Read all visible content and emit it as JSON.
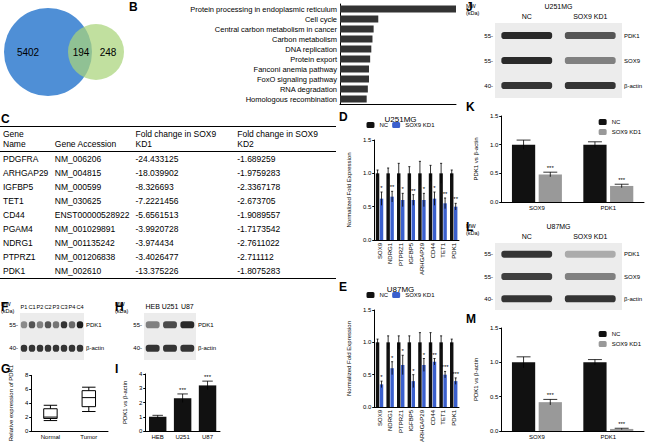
{
  "chart_data": [
    {
      "type": "venn",
      "sets": [
        {
          "value": 5402,
          "color": "#4f8fd6"
        },
        {
          "value": 248,
          "color": "#a9d47a"
        }
      ],
      "overlap": 194
    },
    {
      "type": "bar",
      "panel": "B",
      "orientation": "horizontal",
      "tick_labels": "y",
      "categories": [
        "Protein processing in endoplasmic reticulum",
        "Cell cycle",
        "Central carbon metabolism in cancer",
        "Carbon metabolism",
        "DNA replication",
        "Protein export",
        "Fanconi anemia pathway",
        "FoxO signaling pathway",
        "RNA degradation",
        "Homologous recombination"
      ],
      "values": [
        10,
        3.3,
        2.9,
        2.8,
        2.7,
        2.6,
        2.5,
        2.5,
        2.4,
        2.3
      ],
      "color": "#333333",
      "xlim": [
        0,
        10
      ],
      "xticks": []
    },
    {
      "type": "table",
      "panel": "C",
      "header": [
        "Gene Name",
        "Gene Accession",
        "Fold change in SOX9 KD1",
        "Fold change in SOX9 KD2"
      ],
      "rows": [
        [
          "PDGFRA",
          "NM_006206",
          "-24.433125",
          "-1.689259"
        ],
        [
          "ARHGAP29",
          "NM_004815",
          "-18.039902",
          "-1.9759283"
        ],
        [
          "IGFBP5",
          "NM_000599",
          "-8.326693",
          "-2.3367178"
        ],
        [
          "TET1",
          "NM_030625",
          "-7.2221456",
          "-2.673705"
        ],
        [
          "CD44",
          "ENST00000528922",
          "-5.6561513",
          "-1.9089557"
        ],
        [
          "PGAM4",
          "NM_001029891",
          "-3.9920728",
          "-1.7173542"
        ],
        [
          "NDRG1",
          "NM_001135242",
          "-3.974434",
          "-2.7611022"
        ],
        [
          "PTPRZ1",
          "NM_001206838",
          "-3.4026477",
          "-2.711112"
        ],
        [
          "PDK1",
          "NM_002610",
          "-13.375226",
          "-1.8075283"
        ]
      ]
    },
    {
      "type": "bar",
      "panel": "D",
      "title": "U251MG",
      "legend": "top",
      "categories": [
        "SOX9",
        "NDRG1",
        "PTPRZ1",
        "IGFBP5",
        "ARHGAP29",
        "CD44",
        "TET1",
        "PDK1"
      ],
      "series": [
        {
          "name": "NC",
          "color": "#111111",
          "values": [
            1,
            1,
            1,
            1,
            1,
            1,
            1,
            1
          ],
          "errors": [
            0.05,
            0.08,
            0.15,
            0.1,
            0.18,
            0.12,
            0.15,
            0.05
          ]
        },
        {
          "name": "SOX9 KD1",
          "color": "#3a5fcd",
          "values": [
            0.62,
            0.65,
            0.6,
            0.6,
            0.6,
            0.62,
            0.55,
            0.5
          ],
          "errors": [
            0.1,
            0.08,
            0.1,
            0.08,
            0.1,
            0.1,
            0.08,
            0.05
          ],
          "annotations": [
            "*",
            "**",
            "*",
            "**",
            "*",
            "*",
            "**",
            "**"
          ]
        }
      ],
      "ylabel": "Normalized Fold Expression",
      "ylim": [
        0,
        1.5
      ],
      "yticks": [
        {
          "value": 0,
          "label": "0.0"
        },
        {
          "value": 0.5,
          "label": "0.5"
        },
        {
          "value": 1,
          "label": "1.0"
        },
        {
          "value": 1.5,
          "label": "1.5"
        }
      ]
    },
    {
      "type": "bar",
      "panel": "E",
      "title": "U87MG",
      "legend": "top",
      "categories": [
        "SOX9",
        "NDRG1",
        "PTPRZ1",
        "IGFBP5",
        "ARHGAP29",
        "CD44",
        "TET1",
        "PDK1"
      ],
      "series": [
        {
          "name": "NC",
          "color": "#111111",
          "values": [
            1,
            1,
            1,
            1,
            1,
            1,
            1,
            1
          ],
          "errors": [
            0.05,
            0.1,
            0.1,
            0.1,
            0.15,
            0.15,
            0.1,
            0.05
          ]
        },
        {
          "name": "SOX9 KD1",
          "color": "#3a5fcd",
          "values": [
            0.35,
            0.6,
            0.65,
            0.4,
            0.65,
            0.7,
            0.5,
            0.4
          ],
          "errors": [
            0.05,
            0.1,
            0.15,
            0.1,
            0.1,
            0.05,
            0.05,
            0.05
          ],
          "annotations": [
            "*",
            "*",
            "*",
            "*",
            "*",
            "**",
            "***",
            "***"
          ]
        }
      ],
      "ylabel": "Normalized Fold Expression",
      "ylim": [
        0,
        1.5
      ],
      "yticks": [
        {
          "value": 0,
          "label": "0.0"
        },
        {
          "value": 0.5,
          "label": "0.5"
        },
        {
          "value": 1,
          "label": "1.0"
        },
        {
          "value": 1.5,
          "label": "1.5"
        }
      ]
    },
    {
      "type": "blot",
      "panel": "F",
      "mw_title": [
        "MW",
        "(kDa)"
      ],
      "lanes": [
        "P1",
        "C1",
        "P2",
        "C2",
        "P3",
        "C3",
        "P4",
        "C4"
      ],
      "rows": [
        {
          "label": "PDK1",
          "mw": "55-",
          "intensity": [
            0.45,
            0.7,
            0.5,
            0.7,
            0.55,
            0.85,
            0.6,
            0.95
          ]
        },
        {
          "label": "β-actin",
          "mw": "40-",
          "intensity": [
            0.85,
            0.85,
            0.85,
            0.85,
            0.85,
            0.85,
            0.85,
            0.85
          ]
        }
      ]
    },
    {
      "type": "boxplot",
      "panel": "G",
      "categories": [
        "Normal",
        "Tumor"
      ],
      "boxes": [
        [
          1.5,
          1.8,
          2.0,
          3.2,
          3.7
        ],
        [
          2.8,
          3.5,
          4.8,
          5.8,
          6.3
        ]
      ],
      "ylabel": "Relative expression of PDK1",
      "ylim": [
        0,
        8
      ],
      "yticks": [
        0,
        2,
        4,
        6,
        8
      ]
    },
    {
      "type": "blot",
      "panel": "H",
      "mw_title": [
        "MW",
        "(kDa)"
      ],
      "lanes": [
        "HEB",
        "U251",
        "U87"
      ],
      "rows": [
        {
          "label": "PDK1",
          "mw": "55-",
          "intensity": [
            0.5,
            0.75,
            0.9
          ]
        },
        {
          "label": "β-actin",
          "mw": "40-",
          "intensity": [
            0.85,
            0.85,
            0.85
          ]
        }
      ]
    },
    {
      "type": "bar",
      "panel": "I",
      "categories": [
        "HEB",
        "U251",
        "U87"
      ],
      "values": [
        1,
        2.3,
        3.2
      ],
      "errors": [
        0.1,
        0.3,
        0.3
      ],
      "annotations": [
        null,
        "***",
        "***"
      ],
      "color": "#111111",
      "ylabel": "PDK1 vs β-actin",
      "ylim": [
        0,
        4
      ],
      "yticks": [
        0,
        1,
        2,
        3,
        4
      ]
    },
    {
      "type": "blot",
      "panel": "J",
      "title": "U251MG",
      "mw_title": [
        "MW",
        "(kDa)"
      ],
      "lanes": [
        "NC",
        "SOX9 KD1"
      ],
      "rows": [
        {
          "label": "PDK1",
          "mw": "55-",
          "intensity": [
            0.9,
            0.7
          ]
        },
        {
          "label": "SOX9",
          "mw": "55-",
          "intensity": [
            0.9,
            0.5
          ]
        },
        {
          "label": "β-actin",
          "mw": "40-",
          "intensity": [
            0.85,
            0.85
          ]
        }
      ]
    },
    {
      "type": "bar",
      "panel": "K",
      "legend": "upper right",
      "categories": [
        "SOX9",
        "PDK1"
      ],
      "series": [
        {
          "name": "NC",
          "color": "#111111",
          "values": [
            1,
            1
          ],
          "errors": [
            0.08,
            0.05
          ]
        },
        {
          "name": "SOX9 KD1",
          "color": "#999999",
          "values": [
            0.48,
            0.28
          ],
          "errors": [
            0.04,
            0.03
          ],
          "annotations": [
            "***",
            "***"
          ]
        }
      ],
      "ylabel": "PDK1 vs β-actin",
      "ylim": [
        0,
        1.5
      ],
      "yticks": [
        {
          "value": 0,
          "label": "0.0"
        },
        {
          "value": 0.5,
          "label": "0.5"
        },
        {
          "value": 1,
          "label": "1.0"
        },
        {
          "value": 1.5,
          "label": "1.5"
        }
      ]
    },
    {
      "type": "blot",
      "panel": "L",
      "title": "U87MG",
      "mw_title": [
        "MW",
        "(kDa)"
      ],
      "lanes": [
        "NC",
        "SOX9 KD1"
      ],
      "rows": [
        {
          "label": "PDK1",
          "mw": "55-",
          "intensity": [
            0.85,
            0.3
          ]
        },
        {
          "label": "SOX9",
          "mw": "55-",
          "intensity": [
            0.8,
            0.5
          ]
        },
        {
          "label": "β-actin",
          "mw": "40-",
          "intensity": [
            0.85,
            0.85
          ]
        }
      ]
    },
    {
      "type": "bar",
      "panel": "M",
      "legend": "upper right",
      "categories": [
        "SOX9",
        "PDK1"
      ],
      "series": [
        {
          "name": "NC",
          "color": "#111111",
          "values": [
            1,
            1
          ],
          "errors": [
            0.08,
            0.04
          ]
        },
        {
          "name": "SOX9 KD1",
          "color": "#999999",
          "values": [
            0.42,
            0.03
          ],
          "errors": [
            0.04,
            0.01
          ],
          "annotations": [
            "***",
            "***"
          ]
        }
      ],
      "ylabel": "PDK1 vs β-actin",
      "ylim": [
        0,
        1.5
      ],
      "yticks": [
        {
          "value": 0,
          "label": "0.0"
        },
        {
          "value": 0.5,
          "label": "0.5"
        },
        {
          "value": 1,
          "label": "1.0"
        },
        {
          "value": 1.5,
          "label": "1.5"
        }
      ]
    }
  ]
}
